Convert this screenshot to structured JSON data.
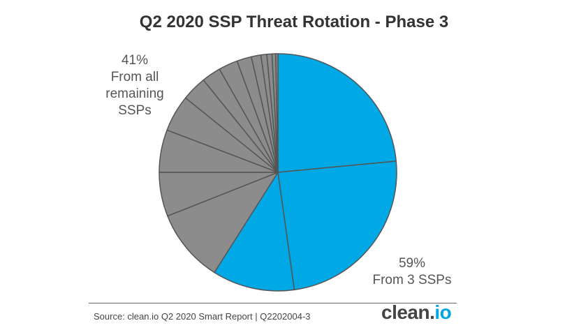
{
  "chart_data": {
    "type": "pie",
    "title": "Q2 2020 SSP Threat Rotation - Phase 3",
    "unit": "%",
    "slices": [
      {
        "value": 23.5,
        "group": "top3"
      },
      {
        "value": 24.3,
        "group": "top3"
      },
      {
        "value": 11.2,
        "group": "top3"
      },
      {
        "value": 10.0,
        "group": "remaining"
      },
      {
        "value": 6.0,
        "group": "remaining"
      },
      {
        "value": 5.8,
        "group": "remaining"
      },
      {
        "value": 5.0,
        "group": "remaining"
      },
      {
        "value": 3.4,
        "group": "remaining"
      },
      {
        "value": 2.6,
        "group": "remaining"
      },
      {
        "value": 2.6,
        "group": "remaining"
      },
      {
        "value": 2.0,
        "group": "remaining"
      },
      {
        "value": 1.3,
        "group": "remaining"
      },
      {
        "value": 0.8,
        "group": "remaining"
      },
      {
        "value": 0.7,
        "group": "remaining"
      },
      {
        "value": 0.5,
        "group": "remaining"
      },
      {
        "value": 0.3,
        "group": "remaining"
      }
    ],
    "colors": {
      "top3": "#00a8e6",
      "remaining": "#8c8c8c",
      "stroke": "#555555"
    },
    "annotations": {
      "remaining": {
        "percent": "41%",
        "lines": [
          "From all",
          "remaining",
          "SSPs"
        ]
      },
      "top3": {
        "percent": "59%",
        "lines": [
          "From 3 SSPs"
        ]
      }
    }
  },
  "footer": {
    "source": "Source: clean.io Q2 2020 Smart Report | Q2202004-3",
    "logo_main": "clean.",
    "logo_accent": "io"
  }
}
